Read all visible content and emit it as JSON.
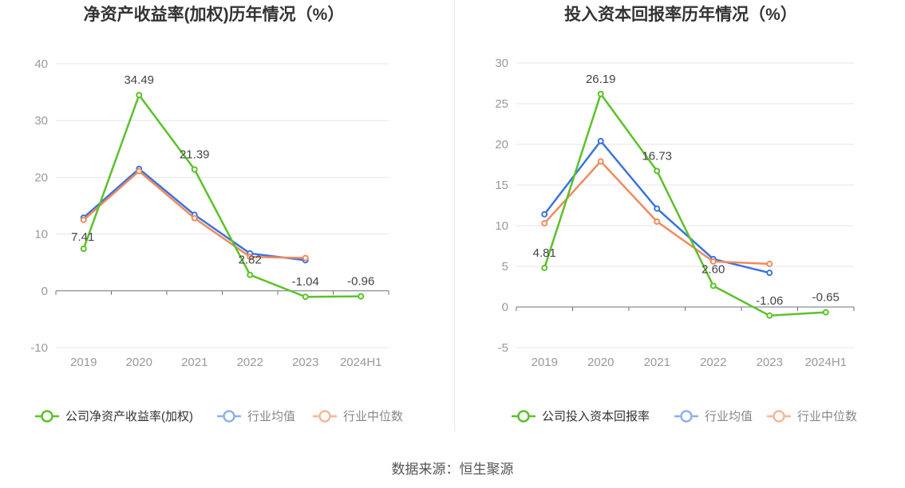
{
  "colors": {
    "company": "#5cc12a",
    "industry_avg": "#3a74dd",
    "industry_median": "#f08a5d",
    "legend_avg": "#8fb0ef",
    "legend_median": "#f5b79c",
    "grid": "#e3e6ec",
    "axis": "#6e7079",
    "tick_label": "#999999",
    "title": "#333333"
  },
  "source_text": "数据来源：恒生聚源",
  "chart_data": [
    {
      "type": "line",
      "title": "净资产收益率(加权)历年情况（%）",
      "categories": [
        "2019",
        "2020",
        "2021",
        "2022",
        "2023",
        "2024H1"
      ],
      "ylim": [
        -10,
        40
      ],
      "yticks": [
        -10,
        0,
        10,
        20,
        30,
        40
      ],
      "grid": true,
      "legend_position": "bottom",
      "series": [
        {
          "name": "公司净资产收益率(加权)",
          "key": "company",
          "values": [
            7.41,
            34.49,
            21.39,
            2.82,
            -1.04,
            -0.96
          ],
          "labels": [
            "7.41",
            "34.49",
            "21.39",
            "2.82",
            "-1.04",
            "-0.96"
          ]
        },
        {
          "name": "行业均值",
          "key": "industry_avg",
          "values": [
            12.9,
            21.5,
            13.4,
            6.6,
            5.4,
            null
          ]
        },
        {
          "name": "行业中位数",
          "key": "industry_median",
          "values": [
            12.5,
            21.1,
            12.8,
            6.0,
            5.8,
            null
          ]
        }
      ]
    },
    {
      "type": "line",
      "title": "投入资本回报率历年情况（%）",
      "categories": [
        "2019",
        "2020",
        "2021",
        "2022",
        "2023",
        "2024H1"
      ],
      "ylim": [
        -5,
        30
      ],
      "yticks": [
        -5,
        0,
        5,
        10,
        15,
        20,
        25,
        30
      ],
      "grid": true,
      "legend_position": "bottom",
      "series": [
        {
          "name": "公司投入资本回报率",
          "key": "company",
          "values": [
            4.81,
            26.19,
            16.73,
            2.6,
            -1.06,
            -0.65
          ],
          "labels": [
            "4.81",
            "26.19",
            "16.73",
            "2.60",
            "-1.06",
            "-0.65"
          ]
        },
        {
          "name": "行业均值",
          "key": "industry_avg",
          "values": [
            11.4,
            20.4,
            12.1,
            5.9,
            4.2,
            null
          ]
        },
        {
          "name": "行业中位数",
          "key": "industry_median",
          "values": [
            10.3,
            17.9,
            10.5,
            5.6,
            5.3,
            null
          ]
        }
      ]
    }
  ]
}
